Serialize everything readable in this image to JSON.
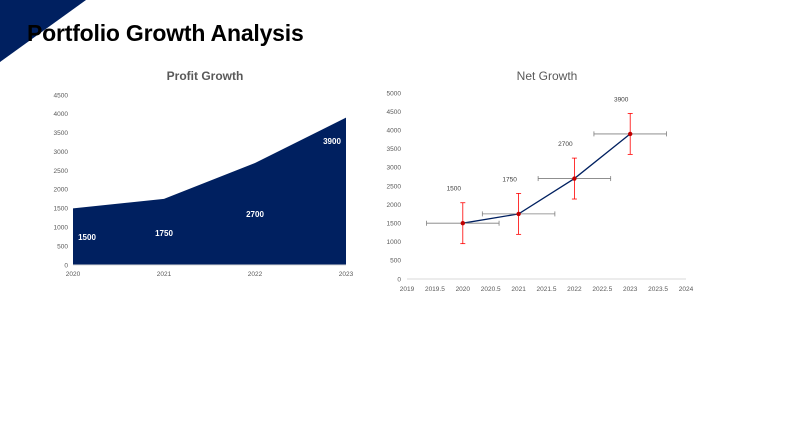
{
  "page": {
    "title": "Portfolio Growth Analysis"
  },
  "colors": {
    "navy": "#002060",
    "error_bar": "#ff0000",
    "xerror_bar": "#7f7f7f",
    "marker": "#c00000"
  },
  "chart_data": [
    {
      "type": "area",
      "title": "Profit Growth",
      "x": [
        2020,
        2021,
        2022,
        2023
      ],
      "values": [
        1500,
        1750,
        2700,
        3900
      ],
      "data_labels": [
        "1500",
        "1750",
        "2700",
        "3900"
      ],
      "xticks": [
        "2020",
        "2021",
        "2022",
        "2023"
      ],
      "yticks": [
        "0",
        "500",
        "1000",
        "1500",
        "2000",
        "2500",
        "3000",
        "3500",
        "4000",
        "4500"
      ],
      "ylim": [
        0,
        4500
      ],
      "xlabel": "",
      "ylabel": "",
      "grid": false,
      "color": "#002060"
    },
    {
      "type": "scatter",
      "title": "Net Growth",
      "x": [
        2020,
        2021,
        2022,
        2023
      ],
      "values": [
        1500,
        1750,
        2700,
        3900
      ],
      "data_labels": [
        "1500",
        "1750",
        "2700",
        "3900"
      ],
      "y_error": [
        550,
        550,
        550,
        550
      ],
      "x_error": [
        0.65,
        0.65,
        0.65,
        0.65
      ],
      "xticks": [
        "2019",
        "2019.5",
        "2020",
        "2020.5",
        "2021",
        "2021.5",
        "2022",
        "2022.5",
        "2023",
        "2023.5",
        "2024"
      ],
      "yticks": [
        "0",
        "500",
        "1000",
        "1500",
        "2000",
        "2500",
        "3000",
        "3500",
        "4000",
        "4500",
        "5000"
      ],
      "xlim": [
        2019,
        2024
      ],
      "ylim": [
        0,
        5000
      ],
      "xlabel": "",
      "ylabel": "",
      "grid": false,
      "line_color": "#002060"
    }
  ]
}
